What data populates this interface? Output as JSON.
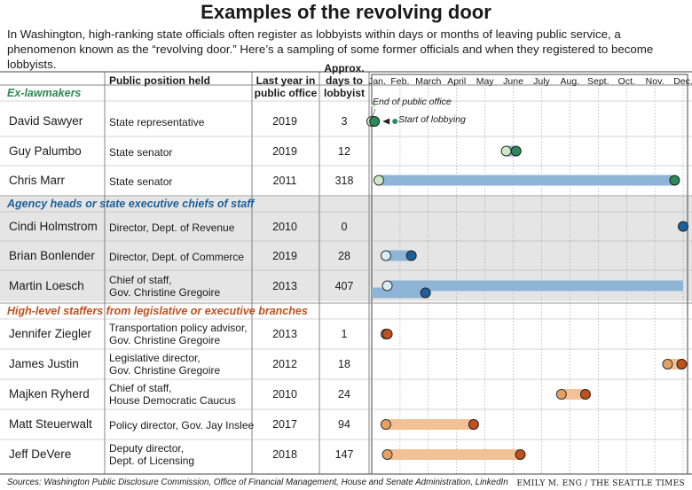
{
  "header": {
    "title": "Examples of the revolving door",
    "subtitle": "In Washington, high-ranking state officials often register as lobbyists within days or months of leaving public service, a phenomenon known as the “revolving door.” Here’s a sampling of some former officials and when they registered to become lobbyists."
  },
  "columns": {
    "public_position": "Public position held",
    "last_year": "Last year in public office",
    "approx_days": "Approx. days to lobbyist"
  },
  "months": [
    "Jan.",
    "Feb.",
    "March",
    "April",
    "May",
    "June",
    "July",
    "Aug.",
    "Sept.",
    "Oct.",
    "Nov.",
    "Dec."
  ],
  "annotations": {
    "end": "End of public office",
    "start": "Start of lobbying"
  },
  "footer": {
    "sources": "Sources: Washington Public Disclosure Commission, Office of Financial Management, House and Senate Administration, LinkedIn",
    "credit": "EMILY M. ENG / THE SEATTLE TIMES"
  },
  "colors": {
    "ex_lawmakers_accent": "#2a8a5a",
    "ex_lawmakers_label": "#2d8a55",
    "ex_lawmakers_light": "#cde8c8",
    "agency_accent": "#1d5f9c",
    "agency_label": "#1d5f9c",
    "agency_light": "#d9edf5",
    "agency_bar": "#8fb5d6",
    "agency_band": "#e5e5e5",
    "staffers_accent": "#c0501e",
    "staffers_label": "#c0501e",
    "staffers_light": "#e8a060",
    "staffers_bar": "#f2c195"
  },
  "chart_data": {
    "type": "timeline",
    "x_unit": "month of year (1 = Jan. ... 12 = Dec.)",
    "groups": [
      {
        "label": "Ex-lawmakers",
        "color_key": "ex_lawmakers",
        "rows": [
          {
            "name": "David Sawyer",
            "position": [
              "State representative"
            ],
            "last_year": "2019",
            "days": "3",
            "end_month": 1.0,
            "start_month": 1.1
          },
          {
            "name": "Guy Palumbo",
            "position": [
              "State senator"
            ],
            "last_year": "2019",
            "days": "12",
            "end_month": 5.75,
            "start_month": 6.1
          },
          {
            "name": "Chris Marr",
            "position": [
              "State senator"
            ],
            "last_year": "2011",
            "days": "318",
            "end_month": 1.25,
            "start_month": 11.7
          }
        ]
      },
      {
        "label": "Agency heads or state executive chiefs of staff",
        "color_key": "agency",
        "rows": [
          {
            "name": "Cindi Holmstrom",
            "position": [
              "Director, Dept. of Revenue"
            ],
            "last_year": "2010",
            "days": "0",
            "end_month": 12.0,
            "start_month": 12.0
          },
          {
            "name": "Brian Bonlender",
            "position": [
              "Director, Dept. of Commerce"
            ],
            "last_year": "2019",
            "days": "28",
            "end_month": 1.5,
            "start_month": 2.4
          },
          {
            "name": "Martin Loesch",
            "position": [
              "Chief of staff,",
              "Gov. Christine Gregoire"
            ],
            "last_year": "2013",
            "days": "407",
            "end_month": 1.55,
            "start_month": 2.9
          }
        ]
      },
      {
        "label": "High-level staffers from legislative or executive branches",
        "color_key": "staffers",
        "rows": [
          {
            "name": "Jennifer Ziegler",
            "position": [
              "Transportation policy advisor,",
              "Gov. Christine Gregoire"
            ],
            "last_year": "2013",
            "days": "1",
            "end_month": 1.5,
            "start_month": 1.55
          },
          {
            "name": "James Justin",
            "position": [
              "Legislative director,",
              "Gov. Christine Gregoire"
            ],
            "last_year": "2012",
            "days": "18",
            "end_month": 11.45,
            "start_month": 11.95
          },
          {
            "name": "Majken Ryherd",
            "position": [
              "Chief of staff,",
              "House Democratic Caucus"
            ],
            "last_year": "2010",
            "days": "24",
            "end_month": 7.7,
            "start_month": 8.55
          },
          {
            "name": "Matt Steuerwalt",
            "position": [
              "Policy director, Gov. Jay Inslee"
            ],
            "last_year": "2017",
            "days": "94",
            "end_month": 1.5,
            "start_month": 4.6
          },
          {
            "name": "Jeff DeVere",
            "position": [
              "Deputy director,",
              "Dept. of Licensing"
            ],
            "last_year": "2018",
            "days": "147",
            "end_month": 1.55,
            "start_month": 6.25
          }
        ]
      }
    ]
  }
}
